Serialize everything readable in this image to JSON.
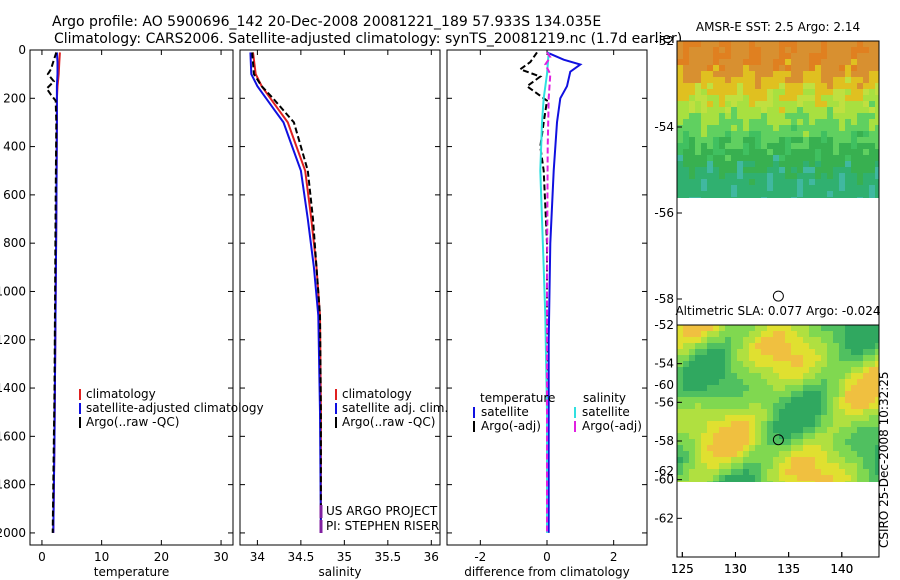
{
  "title": {
    "line1": "Argo profile: AO 5900696_142 20-Dec-2008 20081221_189 57.933S 134.035E",
    "line2": "Climatology: CARS2006. Satellite-adjusted climatology: synTS_20081219.nc (1.7d earlier)"
  },
  "credit": "CSIRO 25-Dec-2008 10:32:25",
  "colors": {
    "red": "#e02020",
    "blue": "#1010e0",
    "black": "#000000",
    "cyan": "#30e0e0",
    "magenta": "#e020e0",
    "purple": "#8020a0"
  },
  "chart_data": [
    {
      "type": "line",
      "xlabel": "temperature",
      "x_ticks": [
        "0",
        "10",
        "20",
        "30"
      ],
      "y_ticks": [
        "0",
        "200",
        "400",
        "600",
        "800",
        "1000",
        "1200",
        "1400",
        "1600",
        "1800",
        "2000"
      ],
      "xlim": [
        -2,
        32
      ],
      "ylim": [
        2050,
        0
      ],
      "legend": [
        "climatology",
        "satellite-adjusted climatology",
        "Argo(..raw -QC)"
      ],
      "series": [
        {
          "name": "climatology",
          "color": "red",
          "dash": false,
          "points": [
            [
              3,
              10
            ],
            [
              2.9,
              50
            ],
            [
              2.8,
              100
            ],
            [
              2.6,
              150
            ],
            [
              2.5,
              200
            ],
            [
              2.5,
              300
            ],
            [
              2.45,
              500
            ],
            [
              2.4,
              700
            ],
            [
              2.3,
              1000
            ],
            [
              2.2,
              1300
            ],
            [
              2.1,
              1600
            ],
            [
              2.0,
              1800
            ],
            [
              1.9,
              2000
            ]
          ]
        },
        {
          "name": "satellite-adjusted climatology",
          "color": "blue",
          "dash": false,
          "points": [
            [
              2.5,
              10
            ],
            [
              2.6,
              50
            ],
            [
              2.6,
              100
            ],
            [
              2.5,
              150
            ],
            [
              2.5,
              200
            ],
            [
              2.5,
              300
            ],
            [
              2.45,
              500
            ],
            [
              2.4,
              700
            ],
            [
              2.3,
              1000
            ],
            [
              2.2,
              1300
            ],
            [
              2.1,
              1600
            ],
            [
              2.0,
              1800
            ],
            [
              1.9,
              2000
            ]
          ]
        },
        {
          "name": "Argo(..raw -QC)",
          "color": "black",
          "dash": true,
          "points": [
            [
              2.4,
              10
            ],
            [
              1.5,
              80
            ],
            [
              1.0,
              100
            ],
            [
              2.0,
              130
            ],
            [
              0.8,
              160
            ],
            [
              1.5,
              185
            ],
            [
              2.3,
              210
            ],
            [
              2.4,
              300
            ],
            [
              2.3,
              600
            ],
            [
              2.2,
              1000
            ],
            [
              2.1,
              1400
            ],
            [
              1.9,
              1800
            ],
            [
              1.8,
              2000
            ]
          ]
        }
      ]
    },
    {
      "type": "line",
      "xlabel": "salinity",
      "x_ticks": [
        "34",
        "34.5",
        "35",
        "35.5",
        "36"
      ],
      "y_ticks": [],
      "xlim": [
        33.8,
        36.1
      ],
      "ylim": [
        2050,
        0
      ],
      "legend": [
        "climatology",
        "satellite adj. clim.",
        "Argo(..raw -QC)"
      ],
      "annotations": [
        "US ARGO PROJECT",
        "PI: STEPHEN RISER"
      ],
      "series": [
        {
          "name": "climatology",
          "color": "red",
          "dash": false,
          "points": [
            [
              33.95,
              10
            ],
            [
              33.98,
              100
            ],
            [
              34.05,
              150
            ],
            [
              34.15,
              200
            ],
            [
              34.25,
              250
            ],
            [
              34.35,
              300
            ],
            [
              34.45,
              400
            ],
            [
              34.55,
              500
            ],
            [
              34.62,
              700
            ],
            [
              34.68,
              900
            ],
            [
              34.72,
              1100
            ],
            [
              34.73,
              1500
            ],
            [
              34.73,
              2000
            ]
          ]
        },
        {
          "name": "satellite adj. clim.",
          "color": "blue",
          "dash": false,
          "points": [
            [
              33.92,
              10
            ],
            [
              33.93,
              100
            ],
            [
              34.0,
              150
            ],
            [
              34.1,
              200
            ],
            [
              34.2,
              250
            ],
            [
              34.3,
              300
            ],
            [
              34.4,
              400
            ],
            [
              34.5,
              500
            ],
            [
              34.58,
              700
            ],
            [
              34.65,
              900
            ],
            [
              34.7,
              1100
            ],
            [
              34.72,
              1500
            ],
            [
              34.73,
              2000
            ]
          ]
        },
        {
          "name": "Argo(..raw -QC)",
          "color": "black",
          "dash": true,
          "points": [
            [
              33.94,
              10
            ],
            [
              33.96,
              100
            ],
            [
              34.05,
              150
            ],
            [
              34.18,
              200
            ],
            [
              34.3,
              250
            ],
            [
              34.42,
              300
            ],
            [
              34.5,
              400
            ],
            [
              34.58,
              500
            ],
            [
              34.64,
              700
            ],
            [
              34.68,
              900
            ],
            [
              34.72,
              1100
            ],
            [
              34.73,
              1500
            ],
            [
              34.73,
              2000
            ]
          ]
        }
      ]
    },
    {
      "type": "line",
      "xlabel": "difference from climatology",
      "x_ticks": [
        "-2",
        "0",
        "2"
      ],
      "y_ticks": [],
      "xlim": [
        -3,
        3
      ],
      "ylim": [
        2050,
        0
      ],
      "legend_headers": [
        "temperature",
        "salinity"
      ],
      "legend": [
        "satellite",
        "Argo(-adj)",
        "satellite",
        "Argo(-adj)"
      ],
      "series": [
        {
          "name": "temperature satellite",
          "color": "blue",
          "dash": false,
          "points": [
            [
              0.0,
              10
            ],
            [
              0.5,
              40
            ],
            [
              1.0,
              60
            ],
            [
              0.7,
              90
            ],
            [
              0.6,
              150
            ],
            [
              0.4,
              200
            ],
            [
              0.3,
              300
            ],
            [
              0.2,
              500
            ],
            [
              0.1,
              800
            ],
            [
              0.05,
              1200
            ],
            [
              0.05,
              1600
            ],
            [
              0.05,
              2000
            ]
          ]
        },
        {
          "name": "temperature Argo(-adj)",
          "color": "black",
          "dash": true,
          "points": [
            [
              -0.3,
              10
            ],
            [
              -0.5,
              50
            ],
            [
              -0.8,
              80
            ],
            [
              -0.2,
              110
            ],
            [
              -0.6,
              150
            ],
            [
              0.0,
              210
            ],
            [
              -0.1,
              300
            ],
            [
              -0.2,
              400
            ],
            [
              -0.1,
              500
            ],
            [
              0.0,
              800
            ],
            [
              0.0,
              1200
            ],
            [
              0.0,
              1600
            ],
            [
              0.0,
              2000
            ]
          ]
        },
        {
          "name": "salinity satellite",
          "color": "cyan",
          "dash": false,
          "points": [
            [
              0.05,
              10
            ],
            [
              0.0,
              100
            ],
            [
              -0.1,
              200
            ],
            [
              -0.15,
              300
            ],
            [
              -0.2,
              500
            ],
            [
              -0.15,
              700
            ],
            [
              -0.1,
              900
            ],
            [
              -0.05,
              1100
            ],
            [
              0.0,
              1500
            ],
            [
              0.0,
              2000
            ]
          ]
        },
        {
          "name": "salinity Argo(-adj)",
          "color": "magenta",
          "dash": true,
          "points": [
            [
              0.0,
              10
            ],
            [
              0.1,
              30
            ],
            [
              -0.05,
              60
            ],
            [
              0.1,
              100
            ],
            [
              0.05,
              200
            ],
            [
              0.02,
              400
            ],
            [
              0.0,
              1000
            ],
            [
              0.0,
              2000
            ]
          ]
        }
      ]
    },
    {
      "type": "heatmap",
      "title": "AMSR-E SST: 2.5 Argo: 2.14",
      "x_ticks": [
        "125",
        "130",
        "135",
        "140"
      ],
      "y_ticks": [
        "-52",
        "-54",
        "-56",
        "-58",
        "-60",
        "-62"
      ],
      "xlim": [
        124.5,
        143.5
      ],
      "ylim": [
        -64,
        -52
      ],
      "data_extent": {
        "lat": [
          -60,
          -52
        ],
        "lon": [
          124.5,
          143.5
        ]
      },
      "marker": {
        "lon": 134.035,
        "lat": -57.933
      }
    },
    {
      "type": "heatmap",
      "title": "Altimetric SLA: 0.077 Argo: -0.024",
      "x_ticks": [
        "125",
        "130",
        "135",
        "140"
      ],
      "y_ticks": [
        "-52",
        "-54",
        "-56",
        "-58",
        "-60",
        "-62"
      ],
      "xlim": [
        124.5,
        143.5
      ],
      "ylim": [
        -64,
        -52
      ],
      "data_extent": {
        "lat": [
          -60,
          -52
        ],
        "lon": [
          124.5,
          143.5
        ]
      },
      "marker": {
        "lon": 134.035,
        "lat": -57.933
      }
    }
  ]
}
